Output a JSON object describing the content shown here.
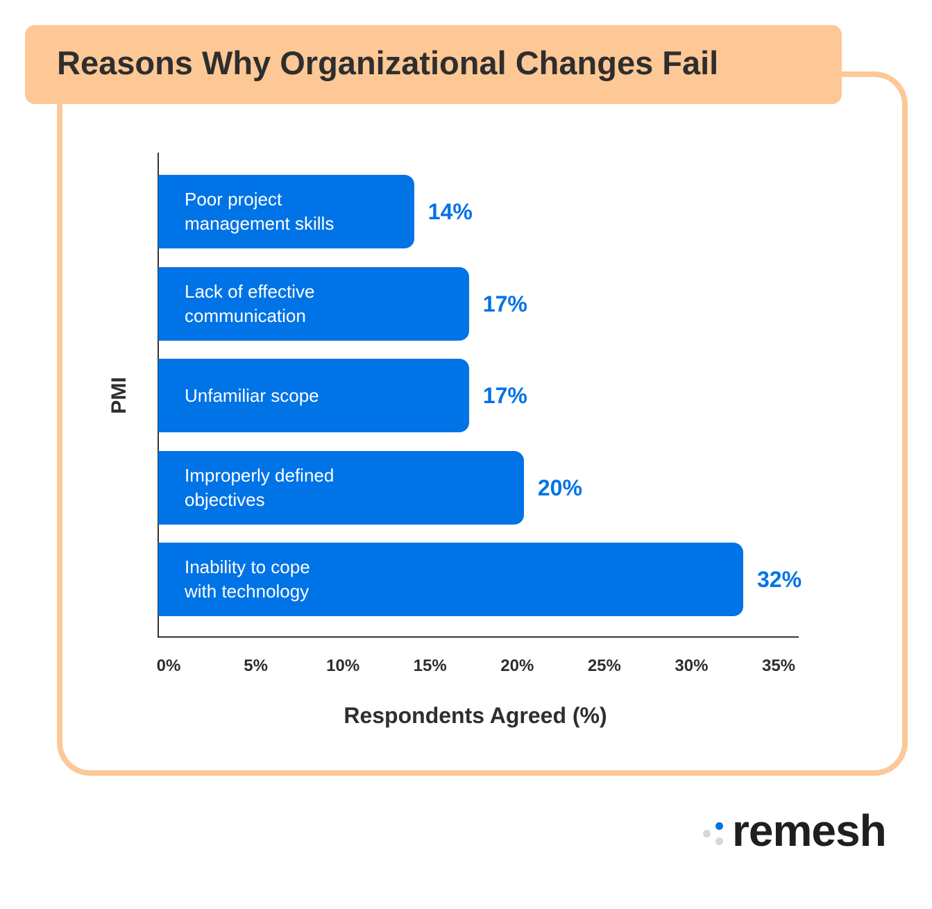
{
  "chart_data": {
    "type": "bar",
    "orientation": "horizontal",
    "title": "Reasons Why Organizational Changes Fail",
    "categories": [
      "Poor project\nmanagement skills",
      "Lack of effective\ncommunication",
      "Unfamiliar scope",
      "Improperly defined\nobjectives",
      "Inability to cope\nwith technology"
    ],
    "values": [
      14,
      17,
      17,
      20,
      32
    ],
    "value_labels": [
      "14%",
      "17%",
      "17%",
      "20%",
      "32%"
    ],
    "color": "#0073e6",
    "xlim": [
      0,
      35
    ],
    "xticks": [
      {
        "value": 0,
        "label": "0%"
      },
      {
        "value": 5,
        "label": "5%"
      },
      {
        "value": 10,
        "label": "10%"
      },
      {
        "value": 15,
        "label": "15%"
      },
      {
        "value": 20,
        "label": "20%"
      },
      {
        "value": 25,
        "label": "25%"
      },
      {
        "value": 30,
        "label": "30%"
      },
      {
        "value": 35,
        "label": "35%"
      }
    ],
    "xlabel": "Respondents Agreed (%)",
    "ylabel": "PMI",
    "grid": false
  },
  "brand": "remesh"
}
